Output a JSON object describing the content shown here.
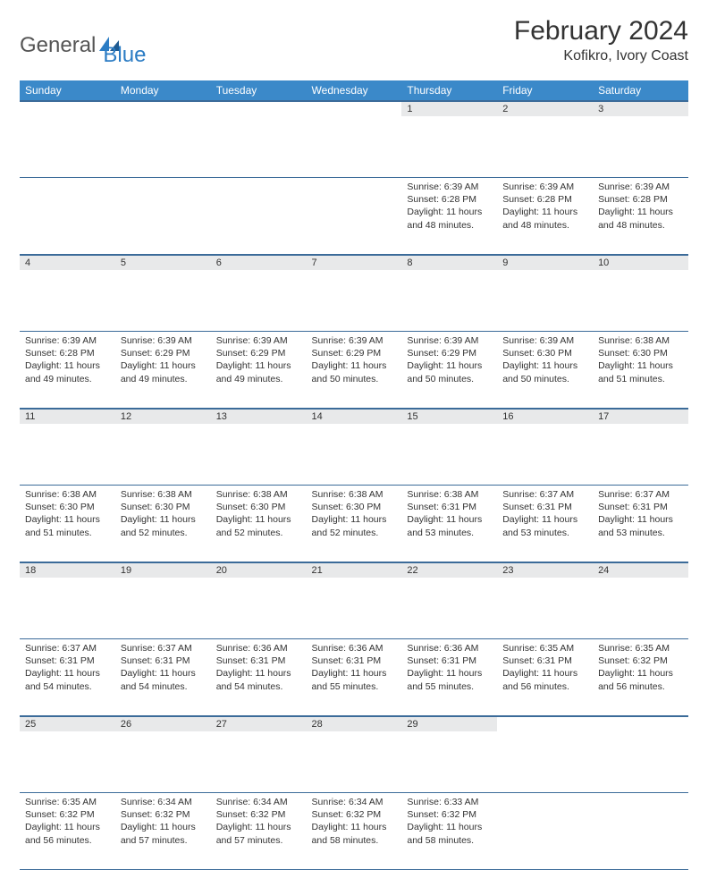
{
  "logo": {
    "text1": "General",
    "text2": "Blue"
  },
  "title": "February 2024",
  "location": "Kofikro, Ivory Coast",
  "colors": {
    "header_bg": "#3b89c9",
    "header_text": "#ffffff",
    "daynum_bg": "#e8e9ea",
    "border": "#3b6b99",
    "logo_gray": "#555555",
    "logo_blue": "#2b7cc4"
  },
  "day_headers": [
    "Sunday",
    "Monday",
    "Tuesday",
    "Wednesday",
    "Thursday",
    "Friday",
    "Saturday"
  ],
  "weeks": [
    [
      {
        "n": "",
        "sr": "",
        "ss": "",
        "dl": ""
      },
      {
        "n": "",
        "sr": "",
        "ss": "",
        "dl": ""
      },
      {
        "n": "",
        "sr": "",
        "ss": "",
        "dl": ""
      },
      {
        "n": "",
        "sr": "",
        "ss": "",
        "dl": ""
      },
      {
        "n": "1",
        "sr": "Sunrise: 6:39 AM",
        "ss": "Sunset: 6:28 PM",
        "dl": "Daylight: 11 hours and 48 minutes."
      },
      {
        "n": "2",
        "sr": "Sunrise: 6:39 AM",
        "ss": "Sunset: 6:28 PM",
        "dl": "Daylight: 11 hours and 48 minutes."
      },
      {
        "n": "3",
        "sr": "Sunrise: 6:39 AM",
        "ss": "Sunset: 6:28 PM",
        "dl": "Daylight: 11 hours and 48 minutes."
      }
    ],
    [
      {
        "n": "4",
        "sr": "Sunrise: 6:39 AM",
        "ss": "Sunset: 6:28 PM",
        "dl": "Daylight: 11 hours and 49 minutes."
      },
      {
        "n": "5",
        "sr": "Sunrise: 6:39 AM",
        "ss": "Sunset: 6:29 PM",
        "dl": "Daylight: 11 hours and 49 minutes."
      },
      {
        "n": "6",
        "sr": "Sunrise: 6:39 AM",
        "ss": "Sunset: 6:29 PM",
        "dl": "Daylight: 11 hours and 49 minutes."
      },
      {
        "n": "7",
        "sr": "Sunrise: 6:39 AM",
        "ss": "Sunset: 6:29 PM",
        "dl": "Daylight: 11 hours and 50 minutes."
      },
      {
        "n": "8",
        "sr": "Sunrise: 6:39 AM",
        "ss": "Sunset: 6:29 PM",
        "dl": "Daylight: 11 hours and 50 minutes."
      },
      {
        "n": "9",
        "sr": "Sunrise: 6:39 AM",
        "ss": "Sunset: 6:30 PM",
        "dl": "Daylight: 11 hours and 50 minutes."
      },
      {
        "n": "10",
        "sr": "Sunrise: 6:38 AM",
        "ss": "Sunset: 6:30 PM",
        "dl": "Daylight: 11 hours and 51 minutes."
      }
    ],
    [
      {
        "n": "11",
        "sr": "Sunrise: 6:38 AM",
        "ss": "Sunset: 6:30 PM",
        "dl": "Daylight: 11 hours and 51 minutes."
      },
      {
        "n": "12",
        "sr": "Sunrise: 6:38 AM",
        "ss": "Sunset: 6:30 PM",
        "dl": "Daylight: 11 hours and 52 minutes."
      },
      {
        "n": "13",
        "sr": "Sunrise: 6:38 AM",
        "ss": "Sunset: 6:30 PM",
        "dl": "Daylight: 11 hours and 52 minutes."
      },
      {
        "n": "14",
        "sr": "Sunrise: 6:38 AM",
        "ss": "Sunset: 6:30 PM",
        "dl": "Daylight: 11 hours and 52 minutes."
      },
      {
        "n": "15",
        "sr": "Sunrise: 6:38 AM",
        "ss": "Sunset: 6:31 PM",
        "dl": "Daylight: 11 hours and 53 minutes."
      },
      {
        "n": "16",
        "sr": "Sunrise: 6:37 AM",
        "ss": "Sunset: 6:31 PM",
        "dl": "Daylight: 11 hours and 53 minutes."
      },
      {
        "n": "17",
        "sr": "Sunrise: 6:37 AM",
        "ss": "Sunset: 6:31 PM",
        "dl": "Daylight: 11 hours and 53 minutes."
      }
    ],
    [
      {
        "n": "18",
        "sr": "Sunrise: 6:37 AM",
        "ss": "Sunset: 6:31 PM",
        "dl": "Daylight: 11 hours and 54 minutes."
      },
      {
        "n": "19",
        "sr": "Sunrise: 6:37 AM",
        "ss": "Sunset: 6:31 PM",
        "dl": "Daylight: 11 hours and 54 minutes."
      },
      {
        "n": "20",
        "sr": "Sunrise: 6:36 AM",
        "ss": "Sunset: 6:31 PM",
        "dl": "Daylight: 11 hours and 54 minutes."
      },
      {
        "n": "21",
        "sr": "Sunrise: 6:36 AM",
        "ss": "Sunset: 6:31 PM",
        "dl": "Daylight: 11 hours and 55 minutes."
      },
      {
        "n": "22",
        "sr": "Sunrise: 6:36 AM",
        "ss": "Sunset: 6:31 PM",
        "dl": "Daylight: 11 hours and 55 minutes."
      },
      {
        "n": "23",
        "sr": "Sunrise: 6:35 AM",
        "ss": "Sunset: 6:31 PM",
        "dl": "Daylight: 11 hours and 56 minutes."
      },
      {
        "n": "24",
        "sr": "Sunrise: 6:35 AM",
        "ss": "Sunset: 6:32 PM",
        "dl": "Daylight: 11 hours and 56 minutes."
      }
    ],
    [
      {
        "n": "25",
        "sr": "Sunrise: 6:35 AM",
        "ss": "Sunset: 6:32 PM",
        "dl": "Daylight: 11 hours and 56 minutes."
      },
      {
        "n": "26",
        "sr": "Sunrise: 6:34 AM",
        "ss": "Sunset: 6:32 PM",
        "dl": "Daylight: 11 hours and 57 minutes."
      },
      {
        "n": "27",
        "sr": "Sunrise: 6:34 AM",
        "ss": "Sunset: 6:32 PM",
        "dl": "Daylight: 11 hours and 57 minutes."
      },
      {
        "n": "28",
        "sr": "Sunrise: 6:34 AM",
        "ss": "Sunset: 6:32 PM",
        "dl": "Daylight: 11 hours and 58 minutes."
      },
      {
        "n": "29",
        "sr": "Sunrise: 6:33 AM",
        "ss": "Sunset: 6:32 PM",
        "dl": "Daylight: 11 hours and 58 minutes."
      },
      {
        "n": "",
        "sr": "",
        "ss": "",
        "dl": ""
      },
      {
        "n": "",
        "sr": "",
        "ss": "",
        "dl": ""
      }
    ]
  ]
}
